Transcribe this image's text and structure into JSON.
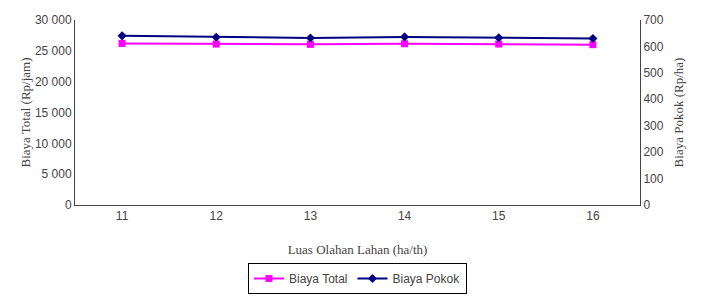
{
  "chart_data": {
    "type": "line",
    "x": [
      11,
      12,
      13,
      14,
      15,
      16
    ],
    "xlabel": "Luas Olahan Lahan (ha/th)",
    "ylabel": "Biaya Total (Rp/jam)",
    "y2label": "Biaya Pokok (Rp/ha)",
    "xlim": [
      10.5,
      16.5
    ],
    "xticks": [
      11,
      12,
      13,
      14,
      15,
      16
    ],
    "ylim": [
      0,
      30000
    ],
    "yticks": [
      0,
      {
        "value": 5000,
        "label": "5 000"
      },
      {
        "value": 10000,
        "label": "10 000"
      },
      {
        "value": 15000,
        "label": "15 000"
      },
      {
        "value": 20000,
        "label": "20 000"
      },
      {
        "value": 25000,
        "label": "25 000"
      },
      {
        "value": 30000,
        "label": "30 000"
      }
    ],
    "y2lim": [
      0,
      700
    ],
    "y2ticks": [
      0,
      100,
      200,
      300,
      400,
      500,
      600,
      700
    ],
    "grid": false,
    "legend": "lower center",
    "series": [
      {
        "name": "Biaya Total",
        "color": "#FF00FF",
        "marker": "square",
        "values": [
          26200,
          26100,
          26050,
          26150,
          26100,
          26000
        ]
      },
      {
        "name": "Biaya Pokok",
        "color": "#000080",
        "marker": "diamond",
        "axis": "y2",
        "values": [
          640,
          635,
          632,
          636,
          633,
          630
        ]
      }
    ]
  }
}
